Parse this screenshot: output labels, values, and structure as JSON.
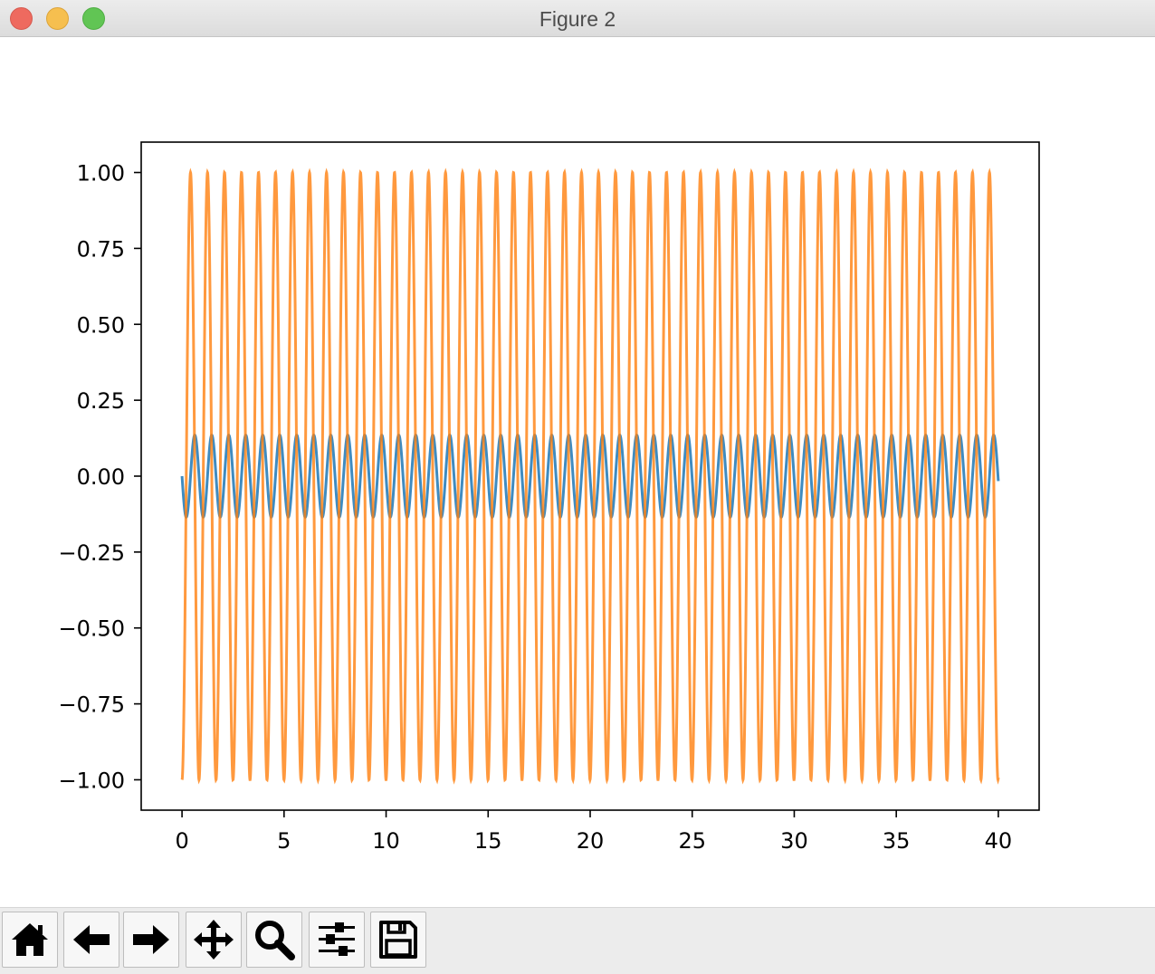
{
  "window": {
    "title": "Figure 2"
  },
  "toolbar": {
    "buttons": [
      {
        "name": "home",
        "icon": "home-icon"
      },
      {
        "name": "back",
        "icon": "arrow-left-icon"
      },
      {
        "name": "forward",
        "icon": "arrow-right-icon"
      },
      {
        "name": "pan",
        "icon": "move-icon"
      },
      {
        "name": "zoom",
        "icon": "magnifier-icon"
      },
      {
        "name": "configure-subplots",
        "icon": "sliders-icon"
      },
      {
        "name": "save",
        "icon": "floppy-disk-icon"
      }
    ]
  },
  "chart_data": {
    "type": "line",
    "title": "",
    "xlabel": "",
    "ylabel": "",
    "xlim": [
      -2,
      42
    ],
    "ylim": [
      -1.1,
      1.1
    ],
    "xticks": [
      "0",
      "5",
      "10",
      "15",
      "20",
      "25",
      "30",
      "35",
      "40"
    ],
    "yticks": [
      "1.00",
      "0.75",
      "0.50",
      "0.25",
      "0.00",
      "−0.25",
      "−0.50",
      "−0.75",
      "−1.00"
    ],
    "grid": false,
    "legend": "none",
    "x_range": [
      0,
      40
    ],
    "series": [
      {
        "color": "#1f77b4",
        "amplitude": 0.135,
        "period": 0.833,
        "phase_at_zero": "0, decreasing",
        "y_at_zero": 0.0
      },
      {
        "color": "#ff7f0e",
        "amplitude": 1.0,
        "period": 0.833,
        "phase_at_zero": "-1, increasing",
        "y_at_zero": -1.0
      }
    ]
  }
}
